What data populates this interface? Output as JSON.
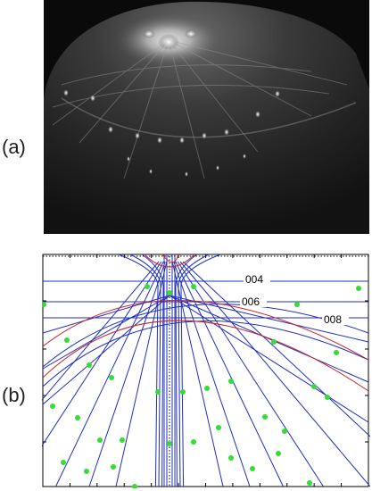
{
  "panels": {
    "a": {
      "label": "(a)"
    },
    "b": {
      "label": "(b)"
    }
  },
  "diagram": {
    "labels": [
      "004",
      "006",
      "008"
    ],
    "colors": {
      "laue_circle": "#cc2222",
      "streak": "#1f2fbf",
      "spot": "#33dd33",
      "axis": "#000000"
    }
  }
}
